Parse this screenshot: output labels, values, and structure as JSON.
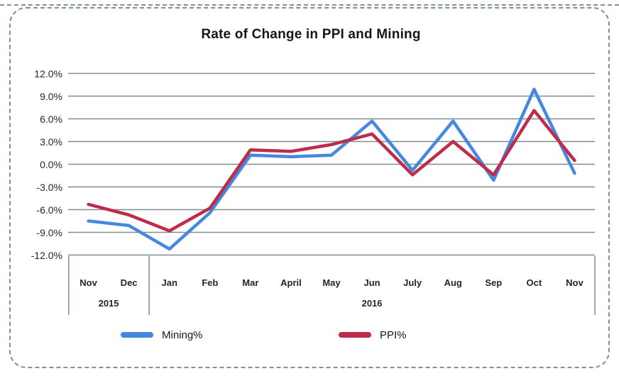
{
  "chart_data": {
    "type": "line",
    "title": "Rate of Change in PPI and Mining",
    "categories": [
      "Nov",
      "Dec",
      "Jan",
      "Feb",
      "Mar",
      "April",
      "May",
      "Jun",
      "July",
      "Aug",
      "Sep",
      "Oct",
      "Nov"
    ],
    "year_row": [
      {
        "label": "2015",
        "from": 0,
        "to": 1
      },
      {
        "label": "2016",
        "from": 2,
        "to": 12
      }
    ],
    "y_tick_labels": [
      "12.0%",
      "9.0%",
      "6.0%",
      "3.0%",
      "0.0%",
      "-3.0%",
      "-6.0%",
      "-9.0%",
      "-12.0%"
    ],
    "ylim": [
      -12,
      12
    ],
    "grid": true,
    "legend_position": "bottom",
    "series": [
      {
        "name": "Mining%",
        "color": "#4687E0",
        "values": [
          -7.5,
          -8.1,
          -11.2,
          -6.4,
          1.2,
          1.0,
          1.2,
          5.7,
          -0.8,
          5.7,
          -2.1,
          9.9,
          -1.2
        ]
      },
      {
        "name": "PPI%",
        "color": "#BE2C4A",
        "values": [
          -5.3,
          -6.7,
          -8.8,
          -5.8,
          1.9,
          1.7,
          2.6,
          4.0,
          -1.4,
          3.0,
          -1.4,
          7.1,
          0.5
        ]
      }
    ],
    "colors": {
      "gridline": "#7E8E8E",
      "frame_border": "#7F9191",
      "title_text": "#171717",
      "axis_text": "#262626"
    }
  }
}
